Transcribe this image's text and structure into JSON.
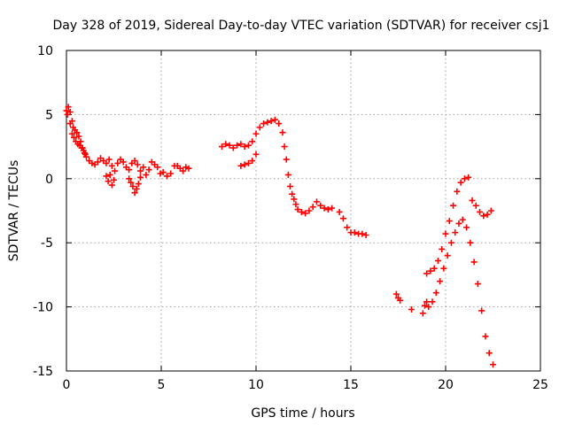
{
  "chart_data": {
    "type": "scatter",
    "title": "Day 328 of 2019, Sidereal Day-to-day VTEC variation (SDTVAR) for receiver csj1",
    "xlabel": "GPS time / hours",
    "ylabel": "SDTVAR / TECUs",
    "xlim": [
      0,
      25
    ],
    "ylim": [
      -15,
      10
    ],
    "xticks": [
      0,
      5,
      10,
      15,
      20,
      25
    ],
    "yticks": [
      -15,
      -10,
      -5,
      0,
      5,
      10
    ],
    "xtick_labels": [
      "0",
      "5",
      "10",
      "15",
      "20",
      "25"
    ],
    "ytick_labels": [
      "-15",
      "-10",
      "-5",
      "0",
      "5",
      "10"
    ],
    "grid": true,
    "marker": "+",
    "series": [
      {
        "name": "SDTVAR",
        "color": "#ff0000",
        "x": [
          0.0,
          0.1,
          0.2,
          0.3,
          0.35,
          0.45,
          0.55,
          0.65,
          0.75,
          0.85,
          0.95,
          1.05,
          1.2,
          1.35,
          1.5,
          1.65,
          1.8,
          1.95,
          2.1,
          2.25,
          2.4,
          2.55,
          2.7,
          2.85,
          3.0,
          3.15,
          3.3,
          3.45,
          3.6,
          3.75,
          3.9,
          4.05,
          4.2,
          4.35,
          4.5,
          4.65,
          4.8,
          4.95,
          5.1,
          5.3,
          5.5,
          5.7,
          5.85,
          6.0,
          6.15,
          6.3,
          6.45,
          0.05,
          0.2,
          0.3,
          0.4,
          0.5,
          0.6,
          0.7,
          0.8,
          0.9,
          1.0,
          2.1,
          2.2,
          2.3,
          2.4,
          2.5,
          3.3,
          3.4,
          3.5,
          3.6,
          3.7,
          3.8,
          3.9,
          8.2,
          8.4,
          8.6,
          8.8,
          9.0,
          9.2,
          9.4,
          9.6,
          9.8,
          10.0,
          10.2,
          10.4,
          10.6,
          10.8,
          11.0,
          11.2,
          11.4,
          9.2,
          9.4,
          9.6,
          9.8,
          10.0,
          11.5,
          11.6,
          11.7,
          11.8,
          11.9,
          12.0,
          12.1,
          12.2,
          12.4,
          12.6,
          12.8,
          13.0,
          13.2,
          13.4,
          13.6,
          13.8,
          14.0,
          14.4,
          14.6,
          14.8,
          15.0,
          15.2,
          15.4,
          15.6,
          15.8,
          17.4,
          17.5,
          17.6,
          18.2,
          18.8,
          18.9,
          19.0,
          19.0,
          19.2,
          19.4,
          19.6,
          19.8,
          20.0,
          20.2,
          20.4,
          20.6,
          20.8,
          21.0,
          21.2,
          21.4,
          21.6,
          21.8,
          22.0,
          22.2,
          22.4,
          19.1,
          19.3,
          19.5,
          19.7,
          19.9,
          20.1,
          20.3,
          20.5,
          20.7,
          20.9,
          21.1,
          21.3,
          21.5,
          21.7,
          21.9,
          22.1,
          22.3,
          22.5
        ],
        "y": [
          5.3,
          5.6,
          5.2,
          4.5,
          4.0,
          3.8,
          3.6,
          3.3,
          2.9,
          2.4,
          2.0,
          1.7,
          1.4,
          1.2,
          1.1,
          1.3,
          1.6,
          1.4,
          1.2,
          1.5,
          1.0,
          0.6,
          1.2,
          1.5,
          1.3,
          0.9,
          0.7,
          1.2,
          1.4,
          1.1,
          0.6,
          0.9,
          0.3,
          0.7,
          1.3,
          1.1,
          0.9,
          0.4,
          0.5,
          0.2,
          0.4,
          1.0,
          1.0,
          0.8,
          0.6,
          0.9,
          0.8,
          5.0,
          4.3,
          3.5,
          3.2,
          2.9,
          2.7,
          2.6,
          2.4,
          2.2,
          1.9,
          0.2,
          -0.2,
          0.3,
          -0.5,
          -0.1,
          0.0,
          -0.3,
          -0.6,
          -1.1,
          -0.8,
          -0.4,
          0.1,
          2.5,
          2.7,
          2.6,
          2.4,
          2.6,
          2.7,
          2.5,
          2.6,
          2.9,
          3.5,
          4.0,
          4.3,
          4.4,
          4.5,
          4.6,
          4.3,
          3.6,
          1.0,
          1.1,
          1.2,
          1.4,
          1.9,
          2.5,
          1.5,
          0.3,
          -0.6,
          -1.2,
          -1.6,
          -2.0,
          -2.4,
          -2.6,
          -2.7,
          -2.5,
          -2.2,
          -1.8,
          -2.1,
          -2.3,
          -2.4,
          -2.3,
          -2.6,
          -3.1,
          -3.8,
          -4.2,
          -4.2,
          -4.3,
          -4.3,
          -4.4,
          -9.0,
          -9.3,
          -9.5,
          -10.2,
          -10.5,
          -9.9,
          -9.6,
          -7.4,
          -7.2,
          -7.0,
          -6.4,
          -5.5,
          -4.3,
          -3.3,
          -2.1,
          -1.0,
          -0.3,
          0.0,
          0.1,
          -1.7,
          -2.1,
          -2.6,
          -2.9,
          -2.8,
          -2.5,
          -10.0,
          -9.6,
          -8.9,
          -8.0,
          -7.0,
          -6.0,
          -5.0,
          -4.2,
          -3.5,
          -3.2,
          -3.8,
          -5.0,
          -6.5,
          -8.2,
          -10.3,
          -12.3,
          -13.6,
          -14.5
        ]
      }
    ]
  }
}
